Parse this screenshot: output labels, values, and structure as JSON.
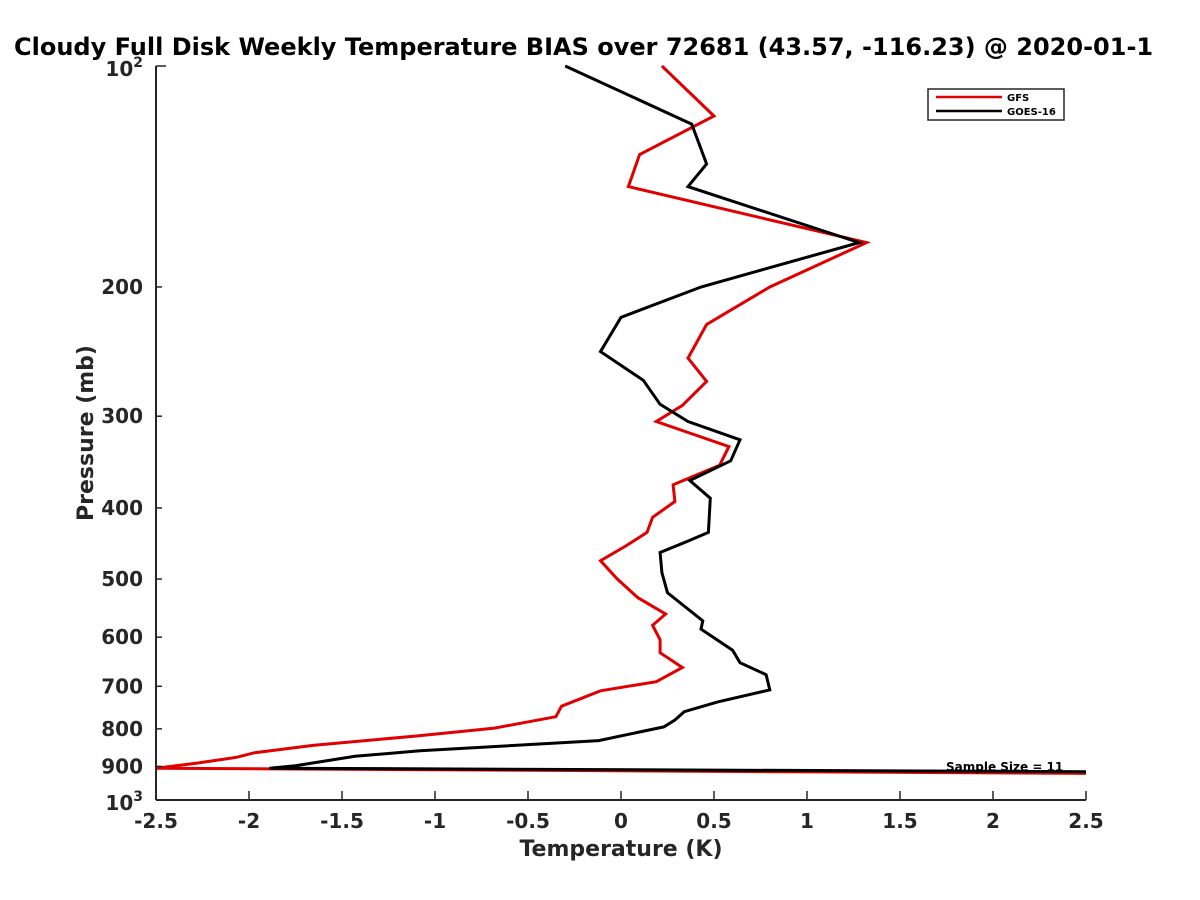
{
  "chart_data": {
    "type": "line",
    "title": "Cloudy Full Disk Weekly Temperature BIAS over 72681 (43.57, -116.23) @ 2020-01-1",
    "xlabel": "Temperature (K)",
    "ylabel": "Pressure (mb)",
    "xlim": [
      -2.5,
      2.5
    ],
    "ylim": [
      100,
      1000
    ],
    "y_scale": "log",
    "y_reversed": true,
    "x_ticks": [
      -2.5,
      -2,
      -1.5,
      -1,
      -0.5,
      0,
      0.5,
      1,
      1.5,
      2,
      2.5
    ],
    "x_tick_labels": [
      "-2.5",
      "-2",
      "-1.5",
      "-1",
      "-0.5",
      "0",
      "0.5",
      "1",
      "1.5",
      "2",
      "2.5"
    ],
    "y_ticks": [
      200,
      300,
      400,
      500,
      600,
      700,
      800,
      900
    ],
    "y_tick_labels": [
      "200",
      "300",
      "400",
      "500",
      "600",
      "700",
      "800",
      "900"
    ],
    "y_edge_labels": {
      "top_base": "10",
      "top_exp": "2",
      "bottom_base": "10",
      "bottom_exp": "3"
    },
    "grid": false,
    "legend_position": "top-right",
    "annotation": "Sample Size = 11",
    "series": [
      {
        "name": "GFS",
        "color": "#e00000",
        "points": [
          [
            0.22,
            100
          ],
          [
            0.5,
            117
          ],
          [
            0.1,
            132
          ],
          [
            0.04,
            146
          ],
          [
            1.32,
            174
          ],
          [
            0.8,
            200
          ],
          [
            0.46,
            225
          ],
          [
            0.36,
            250
          ],
          [
            0.46,
            269
          ],
          [
            0.33,
            290
          ],
          [
            0.19,
            305
          ],
          [
            0.58,
            330
          ],
          [
            0.53,
            350
          ],
          [
            0.28,
            372
          ],
          [
            0.29,
            392
          ],
          [
            0.17,
            412
          ],
          [
            0.14,
            432
          ],
          [
            0.03,
            450
          ],
          [
            -0.11,
            472
          ],
          [
            -0.02,
            500
          ],
          [
            0.09,
            530
          ],
          [
            0.24,
            558
          ],
          [
            0.17,
            578
          ],
          [
            0.21,
            605
          ],
          [
            0.21,
            630
          ],
          [
            0.33,
            660
          ],
          [
            0.19,
            690
          ],
          [
            -0.11,
            710
          ],
          [
            -0.32,
            745
          ],
          [
            -0.35,
            770
          ],
          [
            -0.68,
            798
          ],
          [
            -1.1,
            818
          ],
          [
            -1.65,
            842
          ],
          [
            -1.97,
            862
          ],
          [
            -2.07,
            875
          ],
          [
            -2.27,
            890
          ],
          [
            -2.5,
            905
          ],
          [
            2.5,
            920
          ]
        ]
      },
      {
        "name": "GOES-16",
        "color": "#000000",
        "points": [
          [
            -0.3,
            100
          ],
          [
            0.38,
            120
          ],
          [
            0.46,
            136
          ],
          [
            0.36,
            146
          ],
          [
            1.28,
            174
          ],
          [
            0.43,
            200
          ],
          [
            0.0,
            220
          ],
          [
            -0.11,
            245
          ],
          [
            0.12,
            268
          ],
          [
            0.21,
            289
          ],
          [
            0.36,
            305
          ],
          [
            0.64,
            323
          ],
          [
            0.59,
            345
          ],
          [
            0.37,
            367
          ],
          [
            0.48,
            388
          ],
          [
            0.47,
            432
          ],
          [
            0.35,
            445
          ],
          [
            0.21,
            460
          ],
          [
            0.22,
            490
          ],
          [
            0.25,
            522
          ],
          [
            0.44,
            570
          ],
          [
            0.43,
            585
          ],
          [
            0.6,
            625
          ],
          [
            0.64,
            650
          ],
          [
            0.78,
            675
          ],
          [
            0.8,
            708
          ],
          [
            0.52,
            735
          ],
          [
            0.34,
            758
          ],
          [
            0.29,
            778
          ],
          [
            0.23,
            795
          ],
          [
            -0.12,
            830
          ],
          [
            -1.08,
            857
          ],
          [
            -1.43,
            872
          ],
          [
            -1.75,
            898
          ],
          [
            -1.89,
            905
          ],
          [
            2.5,
            915
          ]
        ]
      }
    ]
  }
}
